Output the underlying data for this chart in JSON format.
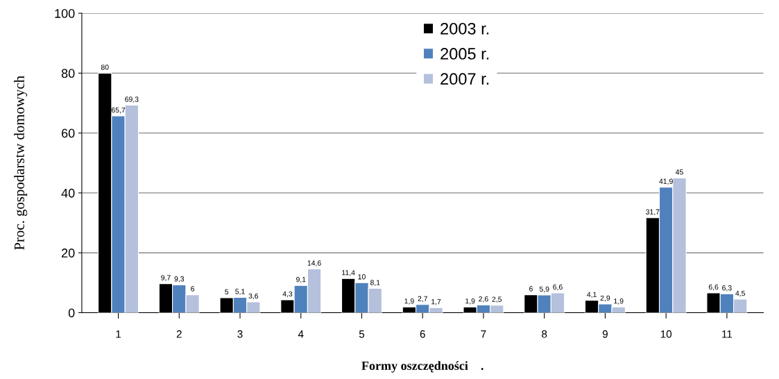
{
  "chart_data": {
    "type": "bar",
    "xlabel": "Formy oszczędności    .",
    "ylabel": "Proc. gospodarstw domowych",
    "categories": [
      "1",
      "2",
      "3",
      "4",
      "5",
      "6",
      "7",
      "8",
      "9",
      "10",
      "11"
    ],
    "series": [
      {
        "name": "2003 r.",
        "color": "#000000",
        "values": [
          80,
          9.7,
          5,
          4.3,
          11.4,
          1.9,
          1.9,
          6,
          4.1,
          31.7,
          6.6
        ],
        "value_labels": [
          "80",
          "9,7",
          "5",
          "4,3",
          "11,4",
          "1,9",
          "1,9",
          "6",
          "4,1",
          "31,7",
          "6,6"
        ]
      },
      {
        "name": "2005 r.",
        "color": "#4f81bd",
        "values": [
          65.7,
          9.3,
          5.1,
          9.1,
          10,
          2.7,
          2.6,
          5.9,
          2.9,
          41.9,
          6.3
        ],
        "value_labels": [
          "65,7",
          "9,3",
          "5,1",
          "9,1",
          "10",
          "2,7",
          "2,6",
          "5,9",
          "2,9",
          "41,9",
          "6,3"
        ]
      },
      {
        "name": "2007 r.",
        "color": "#b4c0dc",
        "values": [
          69.3,
          6,
          3.6,
          14.6,
          8.1,
          1.7,
          2.5,
          6.6,
          1.9,
          45,
          4.5
        ],
        "value_labels": [
          "69,3",
          "6",
          "3,6",
          "14,6",
          "8,1",
          "1,7",
          "2,5",
          "6,6",
          "1,9",
          "45",
          "4,5"
        ]
      }
    ],
    "ylim": [
      0,
      100
    ],
    "yticks": [
      0,
      20,
      40,
      60,
      80,
      100
    ],
    "grid": "y",
    "legend": "top"
  }
}
